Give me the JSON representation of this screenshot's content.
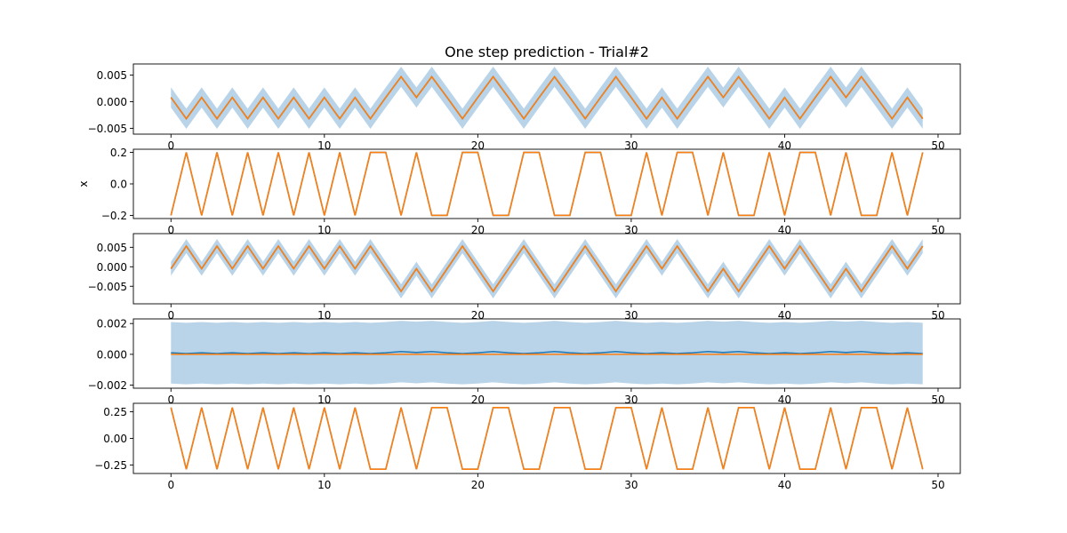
{
  "figure": {
    "title": "One step prediction - Trial#2"
  },
  "colors": {
    "prediction_line": "#1f77b4",
    "uncertainty_band": "#b9d4e9",
    "target_line": "#ff7f0e",
    "axes": "#000000",
    "background": "#ffffff"
  },
  "chart_data": [
    {
      "type": "line",
      "title": "One step prediction - Trial#2",
      "xlabel": "",
      "ylabel": "",
      "xlim": [
        -2.45,
        51.45
      ],
      "ylim": [
        -0.0061,
        0.0071
      ],
      "x_ticks": [
        0,
        10,
        20,
        30,
        40,
        50
      ],
      "y_ticks": [
        -0.005,
        0.0,
        0.005
      ],
      "y_tick_labels": [
        "−0.005",
        "0.000",
        "0.005"
      ],
      "x": [
        0,
        1,
        2,
        3,
        4,
        5,
        6,
        7,
        8,
        9,
        10,
        11,
        12,
        13,
        14,
        15,
        16,
        17,
        18,
        19,
        20,
        21,
        22,
        23,
        24,
        25,
        26,
        27,
        28,
        29,
        30,
        31,
        32,
        33,
        34,
        35,
        36,
        37,
        38,
        39,
        40,
        41,
        42,
        43,
        44,
        45,
        46,
        47,
        48,
        49
      ],
      "band_halfwidth": 0.0019,
      "series": [
        {
          "values": [
            0.0008,
            -0.0032,
            0.0008,
            -0.0032,
            0.0008,
            -0.0032,
            0.0008,
            -0.0032,
            0.0008,
            -0.0032,
            0.0008,
            -0.0032,
            0.0008,
            -0.0032,
            0.0008,
            0.0047,
            0.0008,
            0.0047,
            0.0008,
            -0.0032,
            0.0008,
            0.0047,
            0.0008,
            -0.0032,
            0.0008,
            0.0047,
            0.0008,
            -0.0032,
            0.0008,
            0.0047,
            0.0008,
            -0.0032,
            0.0008,
            -0.0032,
            0.0008,
            0.0047,
            0.0008,
            0.0047,
            0.0008,
            -0.0032,
            0.0008,
            -0.0032,
            0.0008,
            0.0047,
            0.0008,
            0.0047,
            0.0008,
            -0.0032,
            0.0008,
            -0.0032
          ]
        },
        {
          "values": [
            0.0008,
            -0.0032,
            0.0008,
            -0.0032,
            0.0008,
            -0.0032,
            0.0008,
            -0.0032,
            0.0008,
            -0.0032,
            0.0008,
            -0.0032,
            0.0008,
            -0.0032,
            0.0008,
            0.0047,
            0.0008,
            0.0047,
            0.0008,
            -0.0032,
            0.0008,
            0.0047,
            0.0008,
            -0.0032,
            0.0008,
            0.0047,
            0.0008,
            -0.0032,
            0.0008,
            0.0047,
            0.0008,
            -0.0032,
            0.0008,
            -0.0032,
            0.0008,
            0.0047,
            0.0008,
            0.0047,
            0.0008,
            -0.0032,
            0.0008,
            -0.0032,
            0.0008,
            0.0047,
            0.0008,
            0.0047,
            0.0008,
            -0.0032,
            0.0008,
            -0.0032
          ]
        }
      ]
    },
    {
      "type": "line",
      "title": "",
      "xlabel": "",
      "ylabel": "x",
      "xlim": [
        -2.45,
        51.45
      ],
      "ylim": [
        -0.22,
        0.22
      ],
      "x_ticks": [
        0,
        10,
        20,
        30,
        40,
        50
      ],
      "y_ticks": [
        -0.2,
        0.0,
        0.2
      ],
      "y_tick_labels": [
        "−0.2",
        "0.0",
        "0.2"
      ],
      "x": [
        0,
        1,
        2,
        3,
        4,
        5,
        6,
        7,
        8,
        9,
        10,
        11,
        12,
        13,
        14,
        15,
        16,
        17,
        18,
        19,
        20,
        21,
        22,
        23,
        24,
        25,
        26,
        27,
        28,
        29,
        30,
        31,
        32,
        33,
        34,
        35,
        36,
        37,
        38,
        39,
        40,
        41,
        42,
        43,
        44,
        45,
        46,
        47,
        48,
        49
      ],
      "band_halfwidth": 0.0,
      "series": [
        {
          "values": [
            -0.2,
            0.2,
            -0.2,
            0.2,
            -0.2,
            0.2,
            -0.2,
            0.2,
            -0.2,
            0.2,
            -0.2,
            0.2,
            -0.2,
            0.2,
            0.2,
            -0.2,
            0.2,
            -0.2,
            -0.2,
            0.2,
            0.2,
            -0.2,
            -0.2,
            0.2,
            0.2,
            -0.2,
            -0.2,
            0.2,
            0.2,
            -0.2,
            -0.2,
            0.2,
            -0.2,
            0.2,
            0.2,
            -0.2,
            0.2,
            -0.2,
            -0.2,
            0.2,
            -0.2,
            0.2,
            0.2,
            -0.2,
            0.2,
            -0.2,
            -0.2,
            0.2,
            -0.2,
            0.2
          ]
        },
        {
          "values": [
            -0.2,
            0.2,
            -0.2,
            0.2,
            -0.2,
            0.2,
            -0.2,
            0.2,
            -0.2,
            0.2,
            -0.2,
            0.2,
            -0.2,
            0.2,
            0.2,
            -0.2,
            0.2,
            -0.2,
            -0.2,
            0.2,
            0.2,
            -0.2,
            -0.2,
            0.2,
            0.2,
            -0.2,
            -0.2,
            0.2,
            0.2,
            -0.2,
            -0.2,
            0.2,
            -0.2,
            0.2,
            0.2,
            -0.2,
            0.2,
            -0.2,
            -0.2,
            0.2,
            -0.2,
            0.2,
            0.2,
            -0.2,
            0.2,
            -0.2,
            -0.2,
            0.2,
            -0.2,
            0.2
          ]
        }
      ]
    },
    {
      "type": "line",
      "title": "",
      "xlabel": "",
      "ylabel": "",
      "xlim": [
        -2.45,
        51.45
      ],
      "ylim": [
        -0.0095,
        0.0085
      ],
      "x_ticks": [
        0,
        10,
        20,
        30,
        40,
        50
      ],
      "y_ticks": [
        -0.005,
        0.0,
        0.005
      ],
      "y_tick_labels": [
        "−0.005",
        "0.000",
        "0.005"
      ],
      "x": [
        0,
        1,
        2,
        3,
        4,
        5,
        6,
        7,
        8,
        9,
        10,
        11,
        12,
        13,
        14,
        15,
        16,
        17,
        18,
        19,
        20,
        21,
        22,
        23,
        24,
        25,
        26,
        27,
        28,
        29,
        30,
        31,
        32,
        33,
        34,
        35,
        36,
        37,
        38,
        39,
        40,
        41,
        42,
        43,
        44,
        45,
        46,
        47,
        48,
        49
      ],
      "band_halfwidth": 0.0018,
      "series": [
        {
          "values": [
            -0.0005,
            0.0053,
            -0.0005,
            0.0053,
            -0.0005,
            0.0053,
            -0.0005,
            0.0053,
            -0.0005,
            0.0053,
            -0.0005,
            0.0053,
            -0.0005,
            0.0053,
            -0.0005,
            -0.0063,
            -0.0005,
            -0.0063,
            -0.0005,
            0.0053,
            -0.0005,
            -0.0063,
            -0.0005,
            0.0053,
            -0.0005,
            -0.0063,
            -0.0005,
            0.0053,
            -0.0005,
            -0.0063,
            -0.0005,
            0.0053,
            -0.0005,
            0.0053,
            -0.0005,
            -0.0063,
            -0.0005,
            -0.0063,
            -0.0005,
            0.0053,
            -0.0005,
            0.0053,
            -0.0005,
            -0.0063,
            -0.0005,
            -0.0063,
            -0.0005,
            0.0053,
            -0.0005,
            0.0053
          ]
        },
        {
          "values": [
            -0.0005,
            0.0053,
            -0.0005,
            0.0053,
            -0.0005,
            0.0053,
            -0.0005,
            0.0053,
            -0.0005,
            0.0053,
            -0.0005,
            0.0053,
            -0.0005,
            0.0053,
            -0.0005,
            -0.0063,
            -0.0005,
            -0.0063,
            -0.0005,
            0.0053,
            -0.0005,
            -0.0063,
            -0.0005,
            0.0053,
            -0.0005,
            -0.0063,
            -0.0005,
            0.0053,
            -0.0005,
            -0.0063,
            -0.0005,
            0.0053,
            -0.0005,
            0.0053,
            -0.0005,
            -0.0063,
            -0.0005,
            -0.0063,
            -0.0005,
            0.0053,
            -0.0005,
            0.0053,
            -0.0005,
            -0.0063,
            -0.0005,
            -0.0063,
            -0.0005,
            0.0053,
            -0.0005,
            0.0053
          ]
        }
      ]
    },
    {
      "type": "line",
      "title": "",
      "xlabel": "",
      "ylabel": "",
      "xlim": [
        -2.45,
        51.45
      ],
      "ylim": [
        -0.0022,
        0.0023
      ],
      "x_ticks": [
        0,
        10,
        20,
        30,
        40,
        50
      ],
      "y_ticks": [
        -0.002,
        0.0,
        0.002
      ],
      "y_tick_labels": [
        "−0.002",
        "0.000",
        "0.002"
      ],
      "x": [
        0,
        1,
        2,
        3,
        4,
        5,
        6,
        7,
        8,
        9,
        10,
        11,
        12,
        13,
        14,
        15,
        16,
        17,
        18,
        19,
        20,
        21,
        22,
        23,
        24,
        25,
        26,
        27,
        28,
        29,
        30,
        31,
        32,
        33,
        34,
        35,
        36,
        37,
        38,
        39,
        40,
        41,
        42,
        43,
        44,
        45,
        46,
        47,
        48,
        49
      ],
      "band_halfwidth": 0.002,
      "series": [
        {
          "values": [
            0.0001,
            5e-05,
            0.0001,
            5e-05,
            0.0001,
            5e-05,
            0.0001,
            5e-05,
            0.0001,
            5e-05,
            0.0001,
            5e-05,
            0.0001,
            5e-05,
            0.0001,
            0.00018,
            0.00012,
            0.00018,
            0.0001,
            5e-05,
            0.0001,
            0.00018,
            0.0001,
            5e-05,
            0.0001,
            0.00018,
            0.0001,
            5e-05,
            0.0001,
            0.00018,
            0.0001,
            5e-05,
            0.0001,
            5e-05,
            0.0001,
            0.00018,
            0.00012,
            0.00018,
            0.0001,
            5e-05,
            0.0001,
            5e-05,
            0.0001,
            0.00018,
            0.00012,
            0.00018,
            0.0001,
            5e-05,
            0.0001,
            5e-05
          ]
        },
        {
          "values": [
            0.0,
            0.0,
            0.0,
            0.0,
            0.0,
            0.0,
            0.0,
            0.0,
            0.0,
            0.0,
            0.0,
            0.0,
            0.0,
            0.0,
            0.0,
            0.0,
            0.0,
            0.0,
            0.0,
            0.0,
            0.0,
            0.0,
            0.0,
            0.0,
            0.0,
            0.0,
            0.0,
            0.0,
            0.0,
            0.0,
            0.0,
            0.0,
            0.0,
            0.0,
            0.0,
            0.0,
            0.0,
            0.0,
            0.0,
            0.0,
            0.0,
            0.0,
            0.0,
            0.0,
            0.0,
            0.0,
            0.0,
            0.0,
            0.0,
            0.0
          ]
        }
      ]
    },
    {
      "type": "line",
      "title": "",
      "xlabel": "",
      "ylabel": "",
      "xlim": [
        -2.45,
        51.45
      ],
      "ylim": [
        -0.33,
        0.33
      ],
      "x_ticks": [
        0,
        10,
        20,
        30,
        40,
        50
      ],
      "y_ticks": [
        -0.25,
        0.0,
        0.25
      ],
      "y_tick_labels": [
        "−0.25",
        "0.00",
        "0.25"
      ],
      "x": [
        0,
        1,
        2,
        3,
        4,
        5,
        6,
        7,
        8,
        9,
        10,
        11,
        12,
        13,
        14,
        15,
        16,
        17,
        18,
        19,
        20,
        21,
        22,
        23,
        24,
        25,
        26,
        27,
        28,
        29,
        30,
        31,
        32,
        33,
        34,
        35,
        36,
        37,
        38,
        39,
        40,
        41,
        42,
        43,
        44,
        45,
        46,
        47,
        48,
        49
      ],
      "band_halfwidth": 0.0,
      "series": [
        {
          "values": [
            0.29,
            -0.29,
            0.29,
            -0.29,
            0.29,
            -0.29,
            0.29,
            -0.29,
            0.29,
            -0.29,
            0.29,
            -0.29,
            0.29,
            -0.29,
            -0.29,
            0.29,
            -0.29,
            0.29,
            0.29,
            -0.29,
            -0.29,
            0.29,
            0.29,
            -0.29,
            -0.29,
            0.29,
            0.29,
            -0.29,
            -0.29,
            0.29,
            0.29,
            -0.29,
            0.29,
            -0.29,
            -0.29,
            0.29,
            -0.29,
            0.29,
            0.29,
            -0.29,
            0.29,
            -0.29,
            -0.29,
            0.29,
            -0.29,
            0.29,
            0.29,
            -0.29,
            0.29,
            -0.29
          ]
        },
        {
          "values": [
            0.29,
            -0.29,
            0.29,
            -0.29,
            0.29,
            -0.29,
            0.29,
            -0.29,
            0.29,
            -0.29,
            0.29,
            -0.29,
            0.29,
            -0.29,
            -0.29,
            0.29,
            -0.29,
            0.29,
            0.29,
            -0.29,
            -0.29,
            0.29,
            0.29,
            -0.29,
            -0.29,
            0.29,
            0.29,
            -0.29,
            -0.29,
            0.29,
            0.29,
            -0.29,
            0.29,
            -0.29,
            -0.29,
            0.29,
            -0.29,
            0.29,
            0.29,
            -0.29,
            0.29,
            -0.29,
            -0.29,
            0.29,
            -0.29,
            0.29,
            0.29,
            -0.29,
            0.29,
            -0.29
          ]
        }
      ]
    }
  ]
}
